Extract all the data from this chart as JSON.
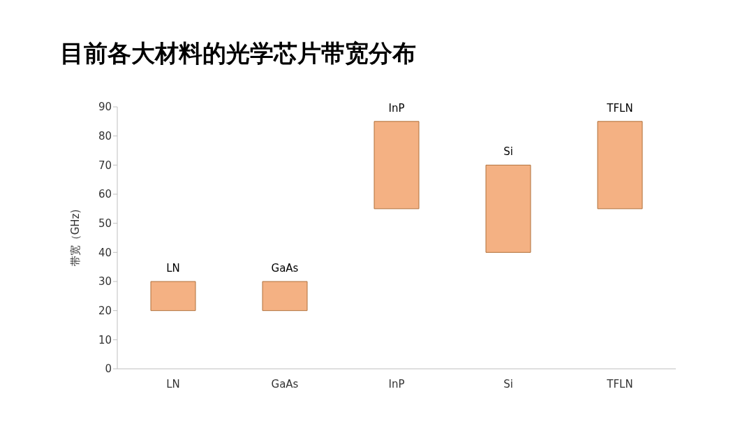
{
  "chart_data": {
    "type": "bar",
    "title": "目前各大材料的光学芯片带宽分布",
    "ylabel": "带宽（GHz)",
    "categories": [
      "LN",
      "GaAs",
      "InP",
      "Si",
      "TFLN"
    ],
    "base": [
      20,
      20,
      55,
      40,
      55
    ],
    "values": [
      10,
      10,
      30,
      30,
      30
    ],
    "color": "#f4b183",
    "ylim": [
      0,
      90
    ],
    "yticks": [
      0,
      10,
      20,
      30,
      40,
      50,
      60,
      70,
      80,
      90
    ],
    "grid": false,
    "legend": false,
    "annotations": [
      {
        "text": "LN",
        "x": "LN",
        "y": 30
      },
      {
        "text": "GaAs",
        "x": "GaAs",
        "y": 30
      },
      {
        "text": "InP",
        "x": "InP",
        "y": 85
      },
      {
        "text": "Si",
        "x": "Si",
        "y": 70
      },
      {
        "text": "TFLN",
        "x": "TFLN",
        "y": 85
      }
    ]
  }
}
